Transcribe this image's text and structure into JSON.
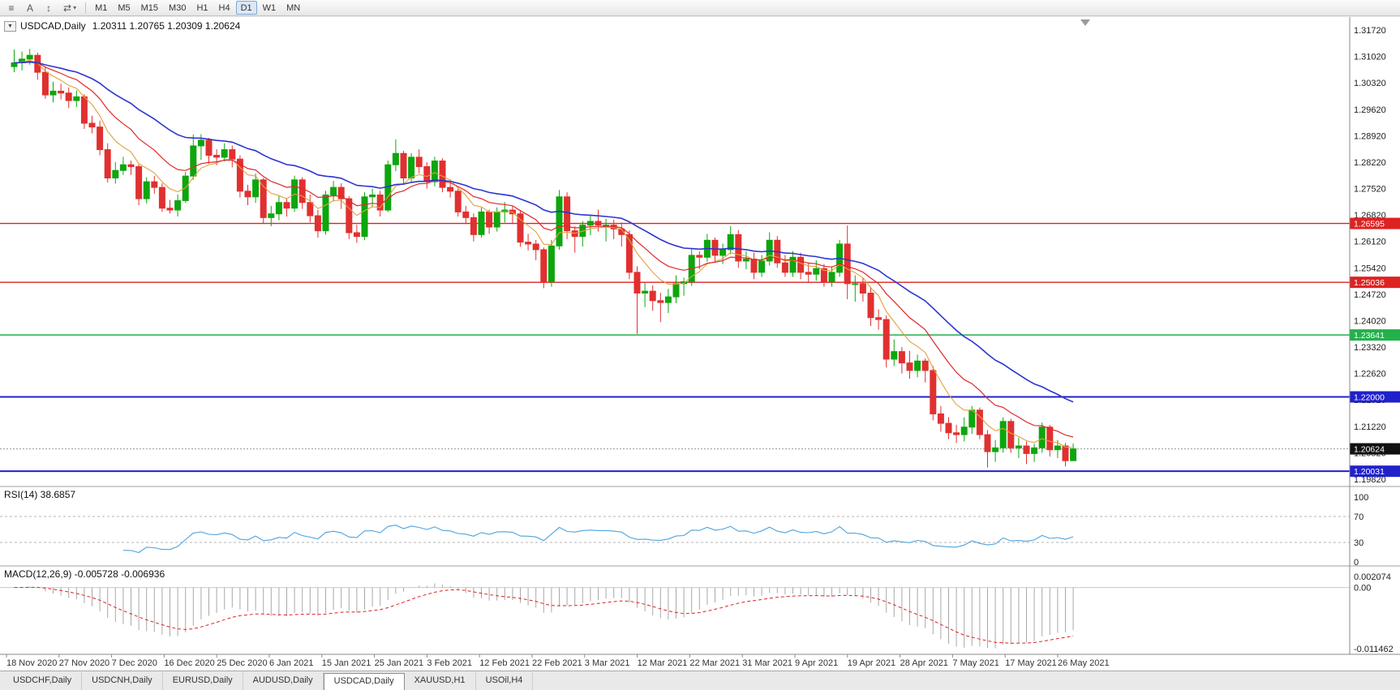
{
  "toolbar": {
    "icon_buttons": [
      {
        "name": "chart-list-icon",
        "glyph": "≡",
        "caret": false
      },
      {
        "name": "cursor-a-icon",
        "glyph": "A",
        "caret": false
      },
      {
        "name": "vertical-scale-icon",
        "glyph": "↕",
        "caret": false
      },
      {
        "name": "chart-mode-icon",
        "glyph": "⇄",
        "caret": true
      }
    ],
    "timeframes": [
      "M1",
      "M5",
      "M15",
      "M30",
      "H1",
      "H4",
      "D1",
      "W1",
      "MN"
    ],
    "active_timeframe": "D1"
  },
  "symbol_menu_glyph": "▼",
  "panels": {
    "main": {
      "symbol_period": "USDCAD,Daily",
      "ohlc": "1.20311 1.20765 1.20309 1.20624"
    },
    "rsi": {
      "label": "RSI(14) 38.6857"
    },
    "macd": {
      "label": "MACD(12,26,9) -0.005728 -0.006936"
    }
  },
  "tabs": {
    "labels": [
      "USDCHF,Daily",
      "USDCNH,Daily",
      "EURUSD,Daily",
      "AUDUSD,Daily",
      "USDCAD,Daily",
      "XAUUSD,H1",
      "USOil,H4"
    ],
    "active_index": 4
  },
  "chart_data": {
    "type": "candlestick",
    "symbol": "USDCAD",
    "timeframe": "Daily",
    "current_bar": {
      "open": 1.20311,
      "high": 1.20765,
      "low": 1.20309,
      "close": 1.20624
    },
    "bull_color": "#0da60d",
    "bear_color": "#e03030",
    "candles": [
      [
        1.3075,
        1.312,
        1.306,
        1.3085
      ],
      [
        1.3085,
        1.3115,
        1.3065,
        1.3095
      ],
      [
        1.3095,
        1.3122,
        1.308,
        1.3105
      ],
      [
        1.3105,
        1.3112,
        1.304,
        1.306
      ],
      [
        1.306,
        1.3075,
        1.299,
        1.3
      ],
      [
        1.3,
        1.3035,
        1.298,
        1.301
      ],
      [
        1.301,
        1.303,
        1.2988,
        1.3005
      ],
      [
        1.3005,
        1.302,
        1.2965,
        1.2985
      ],
      [
        1.2985,
        1.3012,
        1.2968,
        1.2995
      ],
      [
        1.2995,
        1.3002,
        1.291,
        1.2925
      ],
      [
        1.2925,
        1.2945,
        1.2898,
        1.2915
      ],
      [
        1.2915,
        1.2932,
        1.284,
        1.2855
      ],
      [
        1.2855,
        1.2872,
        1.2768,
        1.278
      ],
      [
        1.278,
        1.2822,
        1.2765,
        1.28
      ],
      [
        1.28,
        1.2836,
        1.2788,
        1.2815
      ],
      [
        1.2815,
        1.2826,
        1.2788,
        1.281
      ],
      [
        1.281,
        1.2816,
        1.2708,
        1.2725
      ],
      [
        1.2725,
        1.2782,
        1.2712,
        1.277
      ],
      [
        1.277,
        1.2786,
        1.2738,
        1.2755
      ],
      [
        1.2755,
        1.2766,
        1.269,
        1.27
      ],
      [
        1.27,
        1.2722,
        1.2686,
        1.2695
      ],
      [
        1.2695,
        1.2736,
        1.2678,
        1.272
      ],
      [
        1.272,
        1.2796,
        1.2714,
        1.2785
      ],
      [
        1.2785,
        1.2895,
        1.2775,
        1.2865
      ],
      [
        1.2865,
        1.2896,
        1.2828,
        1.288
      ],
      [
        1.288,
        1.2886,
        1.2818,
        1.284
      ],
      [
        1.284,
        1.2856,
        1.2814,
        1.2835
      ],
      [
        1.2835,
        1.2872,
        1.2824,
        1.2855
      ],
      [
        1.2855,
        1.2866,
        1.2808,
        1.283
      ],
      [
        1.283,
        1.284,
        1.2728,
        1.2745
      ],
      [
        1.2745,
        1.2762,
        1.2708,
        1.273
      ],
      [
        1.273,
        1.2792,
        1.2714,
        1.2775
      ],
      [
        1.2775,
        1.278,
        1.2658,
        1.2675
      ],
      [
        1.2675,
        1.2706,
        1.2652,
        1.2685
      ],
      [
        1.2685,
        1.2732,
        1.2668,
        1.2715
      ],
      [
        1.2715,
        1.2726,
        1.2678,
        1.27
      ],
      [
        1.27,
        1.2786,
        1.269,
        1.2775
      ],
      [
        1.2775,
        1.2782,
        1.2698,
        1.2715
      ],
      [
        1.2715,
        1.2736,
        1.2662,
        1.268
      ],
      [
        1.268,
        1.2696,
        1.2622,
        1.264
      ],
      [
        1.264,
        1.2746,
        1.263,
        1.2735
      ],
      [
        1.2735,
        1.2772,
        1.2718,
        1.2755
      ],
      [
        1.2755,
        1.2766,
        1.2698,
        1.2725
      ],
      [
        1.2725,
        1.2732,
        1.2618,
        1.2635
      ],
      [
        1.2635,
        1.2656,
        1.2608,
        1.2625
      ],
      [
        1.2625,
        1.2742,
        1.2615,
        1.273
      ],
      [
        1.273,
        1.2752,
        1.2702,
        1.2735
      ],
      [
        1.2735,
        1.2746,
        1.2678,
        1.2695
      ],
      [
        1.2695,
        1.2826,
        1.269,
        1.2815
      ],
      [
        1.2815,
        1.2882,
        1.2798,
        1.2845
      ],
      [
        1.2845,
        1.2852,
        1.2762,
        1.278
      ],
      [
        1.278,
        1.2846,
        1.2768,
        1.2835
      ],
      [
        1.2835,
        1.2856,
        1.2792,
        1.281
      ],
      [
        1.281,
        1.2822,
        1.2752,
        1.277
      ],
      [
        1.277,
        1.2836,
        1.2758,
        1.2825
      ],
      [
        1.2825,
        1.2832,
        1.2742,
        1.2755
      ],
      [
        1.2755,
        1.2772,
        1.2728,
        1.2745
      ],
      [
        1.2745,
        1.2752,
        1.2678,
        1.269
      ],
      [
        1.269,
        1.2706,
        1.2658,
        1.2675
      ],
      [
        1.2675,
        1.2686,
        1.2612,
        1.263
      ],
      [
        1.263,
        1.2702,
        1.2622,
        1.269
      ],
      [
        1.269,
        1.2696,
        1.2632,
        1.265
      ],
      [
        1.265,
        1.2702,
        1.2638,
        1.269
      ],
      [
        1.269,
        1.2716,
        1.2662,
        1.2695
      ],
      [
        1.2695,
        1.2706,
        1.2658,
        1.2685
      ],
      [
        1.2685,
        1.2692,
        1.2598,
        1.261
      ],
      [
        1.261,
        1.2632,
        1.2588,
        1.2605
      ],
      [
        1.2605,
        1.2616,
        1.2562,
        1.259
      ],
      [
        1.259,
        1.2596,
        1.2488,
        1.2505
      ],
      [
        1.2505,
        1.2616,
        1.2492,
        1.26
      ],
      [
        1.26,
        1.2748,
        1.259,
        1.273
      ],
      [
        1.273,
        1.2742,
        1.2618,
        1.264
      ],
      [
        1.264,
        1.2652,
        1.2582,
        1.2625
      ],
      [
        1.2625,
        1.2666,
        1.2598,
        1.2655
      ],
      [
        1.2655,
        1.2682,
        1.2628,
        1.2665
      ],
      [
        1.2665,
        1.2696,
        1.2638,
        1.2655
      ],
      [
        1.2655,
        1.2672,
        1.2612,
        1.2655
      ],
      [
        1.2655,
        1.267,
        1.2618,
        1.2645
      ],
      [
        1.2645,
        1.2662,
        1.2598,
        1.263
      ],
      [
        1.263,
        1.2641,
        1.2512,
        1.253
      ],
      [
        1.253,
        1.2546,
        1.2367,
        1.2475
      ],
      [
        1.2475,
        1.2502,
        1.2438,
        1.248
      ],
      [
        1.248,
        1.2496,
        1.2428,
        1.2455
      ],
      [
        1.2455,
        1.2476,
        1.2398,
        1.245
      ],
      [
        1.245,
        1.2486,
        1.2422,
        1.2465
      ],
      [
        1.2465,
        1.2522,
        1.2448,
        1.25
      ],
      [
        1.25,
        1.2516,
        1.2468,
        1.2505
      ],
      [
        1.2505,
        1.2592,
        1.2494,
        1.2575
      ],
      [
        1.2575,
        1.2586,
        1.2538,
        1.257
      ],
      [
        1.257,
        1.2632,
        1.2558,
        1.2615
      ],
      [
        1.2615,
        1.2622,
        1.2558,
        1.2575
      ],
      [
        1.2575,
        1.2606,
        1.2552,
        1.259
      ],
      [
        1.259,
        1.2652,
        1.2578,
        1.263
      ],
      [
        1.263,
        1.2642,
        1.2542,
        1.256
      ],
      [
        1.256,
        1.2586,
        1.2538,
        1.2565
      ],
      [
        1.2565,
        1.2582,
        1.2512,
        1.253
      ],
      [
        1.253,
        1.2576,
        1.2518,
        1.256
      ],
      [
        1.256,
        1.2636,
        1.2548,
        1.2615
      ],
      [
        1.2615,
        1.2626,
        1.2542,
        1.2555
      ],
      [
        1.2555,
        1.2576,
        1.2518,
        1.253
      ],
      [
        1.253,
        1.2586,
        1.2518,
        1.257
      ],
      [
        1.257,
        1.2582,
        1.2512,
        1.253
      ],
      [
        1.253,
        1.2556,
        1.2502,
        1.2525
      ],
      [
        1.2525,
        1.2562,
        1.2508,
        1.254
      ],
      [
        1.254,
        1.2552,
        1.2492,
        1.2505
      ],
      [
        1.2505,
        1.2546,
        1.2492,
        1.253
      ],
      [
        1.253,
        1.2616,
        1.2518,
        1.2605
      ],
      [
        1.2605,
        1.2654,
        1.2459,
        1.25
      ],
      [
        1.25,
        1.2522,
        1.2452,
        1.25
      ],
      [
        1.25,
        1.2516,
        1.2452,
        1.2475
      ],
      [
        1.2475,
        1.2492,
        1.2388,
        1.241
      ],
      [
        1.241,
        1.2432,
        1.2378,
        1.2405
      ],
      [
        1.2405,
        1.2416,
        1.2278,
        1.23
      ],
      [
        1.23,
        1.2352,
        1.2282,
        1.232
      ],
      [
        1.232,
        1.2332,
        1.2262,
        1.229
      ],
      [
        1.229,
        1.2322,
        1.2248,
        1.227
      ],
      [
        1.227,
        1.2312,
        1.2252,
        1.2295
      ],
      [
        1.2295,
        1.2302,
        1.2238,
        1.227
      ],
      [
        1.227,
        1.2282,
        1.2138,
        1.2155
      ],
      [
        1.2155,
        1.2176,
        1.2108,
        1.213
      ],
      [
        1.213,
        1.2146,
        1.2088,
        1.2105
      ],
      [
        1.2105,
        1.2126,
        1.2078,
        1.21
      ],
      [
        1.21,
        1.2146,
        1.2082,
        1.212
      ],
      [
        1.212,
        1.2176,
        1.2102,
        1.2165
      ],
      [
        1.2165,
        1.2172,
        1.2088,
        1.21
      ],
      [
        1.21,
        1.2112,
        1.2013,
        1.2055
      ],
      [
        1.2055,
        1.2086,
        1.2028,
        1.2065
      ],
      [
        1.2065,
        1.2146,
        1.2052,
        1.2135
      ],
      [
        1.2135,
        1.2142,
        1.2052,
        1.2065
      ],
      [
        1.2065,
        1.2092,
        1.2038,
        1.207
      ],
      [
        1.207,
        1.2082,
        1.2022,
        1.205
      ],
      [
        1.205,
        1.2076,
        1.2028,
        1.2065
      ],
      [
        1.2065,
        1.2132,
        1.2052,
        1.212
      ],
      [
        1.212,
        1.2126,
        1.2042,
        1.206
      ],
      [
        1.206,
        1.2086,
        1.2038,
        1.207
      ],
      [
        1.207,
        1.2078,
        1.2016,
        1.2031
      ],
      [
        1.20311,
        1.20765,
        1.20309,
        1.20624
      ]
    ],
    "moving_averages": [
      {
        "name": "fast-ma",
        "period": 7,
        "color": "#e0a23c",
        "width": 1.1
      },
      {
        "name": "mid-ma",
        "period": 14,
        "color": "#e02828",
        "width": 1.2
      },
      {
        "name": "slow-ma",
        "period": 30,
        "color": "#2b35cf",
        "width": 1.6
      }
    ],
    "horizontal_levels": [
      {
        "price": 1.26595,
        "label": "1.26595",
        "color": "#dd2222",
        "thickness": 1.4
      },
      {
        "price": 1.25036,
        "label": "1.25036",
        "color": "#dd2222",
        "thickness": 1.4
      },
      {
        "price": 1.23641,
        "label": "1.23641",
        "color": "#22b14c",
        "thickness": 1.4
      },
      {
        "price": 1.22,
        "label": "1.22000",
        "color": "#2121cc",
        "thickness": 2
      },
      {
        "price": 1.20031,
        "label": "1.20031",
        "color": "#2121cc",
        "thickness": 2
      }
    ],
    "current_price": {
      "value": 1.20624,
      "label": "1.20624",
      "line_color": "#999999",
      "chip_color": "#111111"
    },
    "price_axis_labels": [
      "1.31720",
      "1.31020",
      "1.30320",
      "1.29620",
      "1.28920",
      "1.28220",
      "1.27520",
      "1.26820",
      "1.26120",
      "1.25420",
      "1.24720",
      "1.24020",
      "1.23320",
      "1.22620",
      "1.21920",
      "1.21220",
      "1.20520",
      "1.19820"
    ],
    "time_axis_labels": [
      "18 Nov 2020",
      "27 Nov 2020",
      "7 Dec 2020",
      "16 Dec 2020",
      "25 Dec 2020",
      "6 Jan 2021",
      "15 Jan 2021",
      "25 Jan 2021",
      "3 Feb 2021",
      "12 Feb 2021",
      "22 Feb 2021",
      "3 Mar 2021",
      "12 Mar 2021",
      "22 Mar 2021",
      "31 Mar 2021",
      "9 Apr 2021",
      "19 Apr 2021",
      "28 Apr 2021",
      "7 May 2021",
      "17 May 2021",
      "26 May 2021"
    ],
    "indicators": [
      {
        "name": "RSI",
        "label": "RSI(14) 38.6857",
        "period": 14,
        "line_color": "#4da3dd",
        "axis_labels": [
          "100",
          "70",
          "30",
          "0"
        ],
        "level_lines": [
          70,
          30
        ]
      },
      {
        "name": "MACD",
        "label": "MACD(12,26,9) -0.005728 -0.006936",
        "fast": 12,
        "slow": 26,
        "signal": 9,
        "histogram_color": "#a8a8a8",
        "signal_color": "#e02020",
        "axis_labels": [
          "0.002074",
          "0.00",
          "-0.011462"
        ],
        "axis_top_value": 0.002074,
        "axis_bottom_value": -0.011462
      }
    ]
  }
}
